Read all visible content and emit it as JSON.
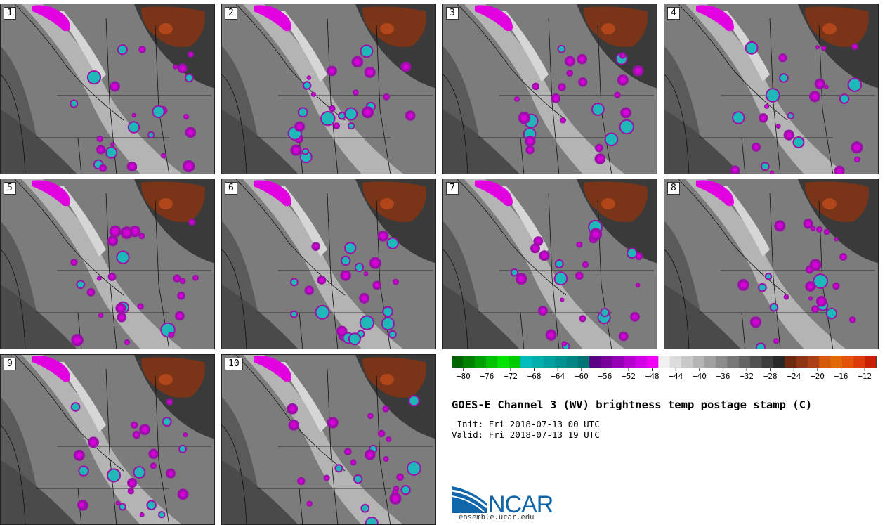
{
  "panels": [
    {
      "label": "1"
    },
    {
      "label": "2"
    },
    {
      "label": "3"
    },
    {
      "label": "4"
    },
    {
      "label": "5"
    },
    {
      "label": "6"
    },
    {
      "label": "7"
    },
    {
      "label": "8"
    },
    {
      "label": "9"
    },
    {
      "label": "10"
    }
  ],
  "colorbar": {
    "colors": [
      "#006400",
      "#008200",
      "#00a000",
      "#00c200",
      "#00e400",
      "#00ca00",
      "#00bcbc",
      "#00aeae",
      "#00a0a0",
      "#009292",
      "#008484",
      "#007474",
      "#5a0082",
      "#78009a",
      "#9600b4",
      "#b400cc",
      "#d200e6",
      "#f000f5",
      "#f0f0f0",
      "#dcdcdc",
      "#c8c8c8",
      "#b4b4b4",
      "#a0a0a0",
      "#8c8c8c",
      "#787878",
      "#646464",
      "#505050",
      "#3c3c3c",
      "#282828",
      "#6e2a10",
      "#8c3414",
      "#aa3e16",
      "#d45a0a",
      "#e06a08",
      "#e25208",
      "#dc3a08",
      "#c82000"
    ],
    "tick_labels": [
      "−80",
      "−76",
      "−72",
      "−68",
      "−64",
      "−60",
      "−56",
      "−52",
      "−48",
      "−44",
      "−40",
      "−36",
      "−32",
      "−28",
      "−24",
      "−20",
      "−16",
      "−12"
    ],
    "min": -82,
    "max": -10
  },
  "title": "GOES-E Channel 3 (WV) brightness temp postage stamp (C)",
  "init_text": " Init: Fri 2018-07-13 00 UTC",
  "valid_text": "Valid: Fri 2018-07-13 19 UTC",
  "logo": {
    "name": "NCAR",
    "url": "ensemble.ucar.edu",
    "blue": "#1166aa"
  }
}
